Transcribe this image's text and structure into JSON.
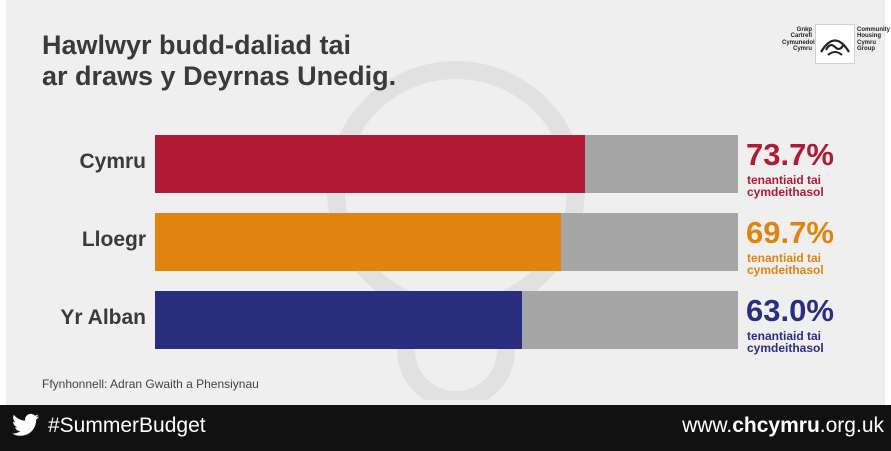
{
  "title_line1": "Hawlwyr budd-daliad tai",
  "title_line2": "ar draws y Deyrnas Unedig.",
  "logo": {
    "welsh": [
      "Grŵp",
      "Cartrefi",
      "Cymunedol",
      "Cymru"
    ],
    "english": [
      "Community",
      "Housing",
      "Cymru",
      "Group"
    ]
  },
  "chart_data": {
    "type": "bar",
    "orientation": "horizontal",
    "categories": [
      "Cymru",
      "Lloegr",
      "Yr Alban"
    ],
    "values": [
      73.7,
      69.7,
      63.0
    ],
    "value_labels": [
      "73.7%",
      "69.7%",
      "63.0%"
    ],
    "unit": "%",
    "xlim": [
      0,
      100
    ],
    "colors": [
      "#b01a35",
      "#e0830f",
      "#2b2e7f"
    ],
    "remainder_color": "#a6a6a6",
    "annotation": [
      "tenantiaid tai",
      "cymdeithasol"
    ],
    "title": "Hawlwyr budd-daliad tai ar draws y Deyrnas Unedig.",
    "grid": false,
    "legend": "none"
  },
  "source": "Ffynhonnell: Adran Gwaith a Phensiynau",
  "footer": {
    "hashtag": "#SummerBudget",
    "site_prefix": "www.",
    "site_bold": "chcymru",
    "site_suffix": ".org.uk",
    "icon": "twitter-bird-icon"
  }
}
